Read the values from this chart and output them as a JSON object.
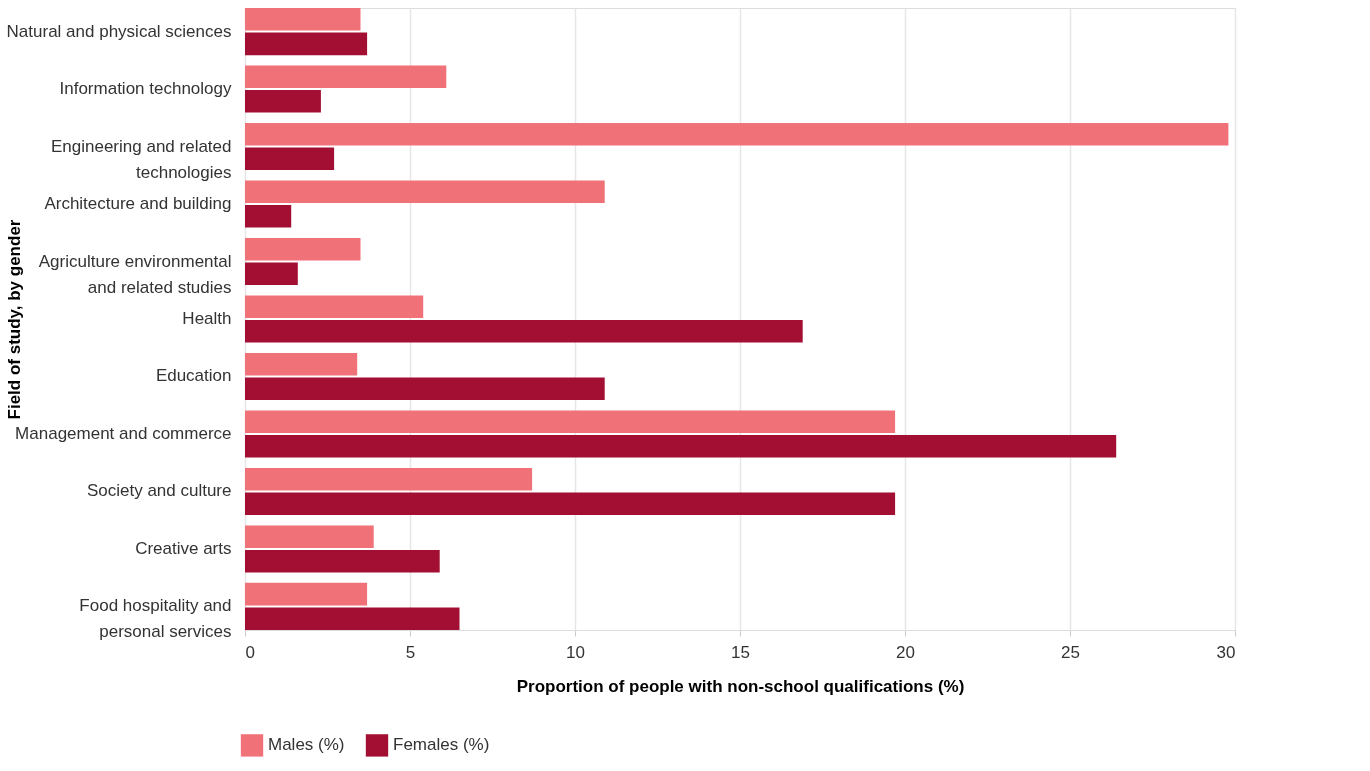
{
  "chart_data": {
    "type": "bar",
    "orientation": "horizontal",
    "xlabel": "Proportion of people with non-school qualifications (%)",
    "ylabel": "Field of study, by gender",
    "categories": [
      "Natural and physical sciences",
      "Information technology",
      "Engineering and related\ntechnologies",
      "Architecture and building",
      "Agriculture environmental\nand related studies",
      "Health",
      "Education",
      "Management and commerce",
      "Society and culture",
      "Creative arts",
      "Food hospitality and\npersonal services"
    ],
    "series": [
      {
        "name": "Males (%)",
        "color": "#f07178",
        "values": [
          3.5,
          6.1,
          29.8,
          10.9,
          3.5,
          5.4,
          3.4,
          19.7,
          8.7,
          3.9,
          3.7
        ]
      },
      {
        "name": "Females (%)",
        "color": "#a30e33",
        "values": [
          3.7,
          2.3,
          2.7,
          1.4,
          1.6,
          16.9,
          10.9,
          26.4,
          19.7,
          5.9,
          6.5
        ]
      }
    ],
    "xlim": [
      0,
      30
    ],
    "xticks": [
      0,
      5,
      10,
      15,
      20,
      25,
      30
    ],
    "grid": "x",
    "legend": "bottom left"
  }
}
